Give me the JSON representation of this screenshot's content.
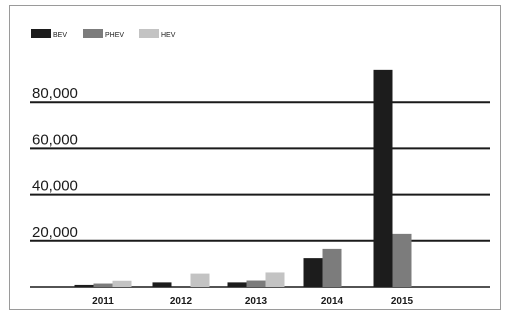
{
  "chart_data": {
    "type": "bar",
    "title": "",
    "xlabel": "",
    "ylabel": "",
    "categories": [
      "2011",
      "2012",
      "2013",
      "2014",
      "2015"
    ],
    "series": [
      {
        "name": "BEV",
        "color": "#1c1c1c",
        "values": [
          900,
          2000,
          2000,
          12500,
          94000
        ]
      },
      {
        "name": "PHEV",
        "color": "#7c7c7c",
        "values": [
          1500,
          0,
          2800,
          16500,
          23000
        ]
      },
      {
        "name": "HEV",
        "color": "#c3c3c3",
        "values": [
          2700,
          5800,
          6300,
          0,
          0
        ]
      }
    ],
    "yticks": [
      20000,
      40000,
      60000,
      80000
    ],
    "ytick_labels": [
      "20,000",
      "40,000",
      "60,000",
      "80,000"
    ],
    "ylim": [
      0,
      100000
    ],
    "grid": true,
    "legend": "top-left"
  }
}
